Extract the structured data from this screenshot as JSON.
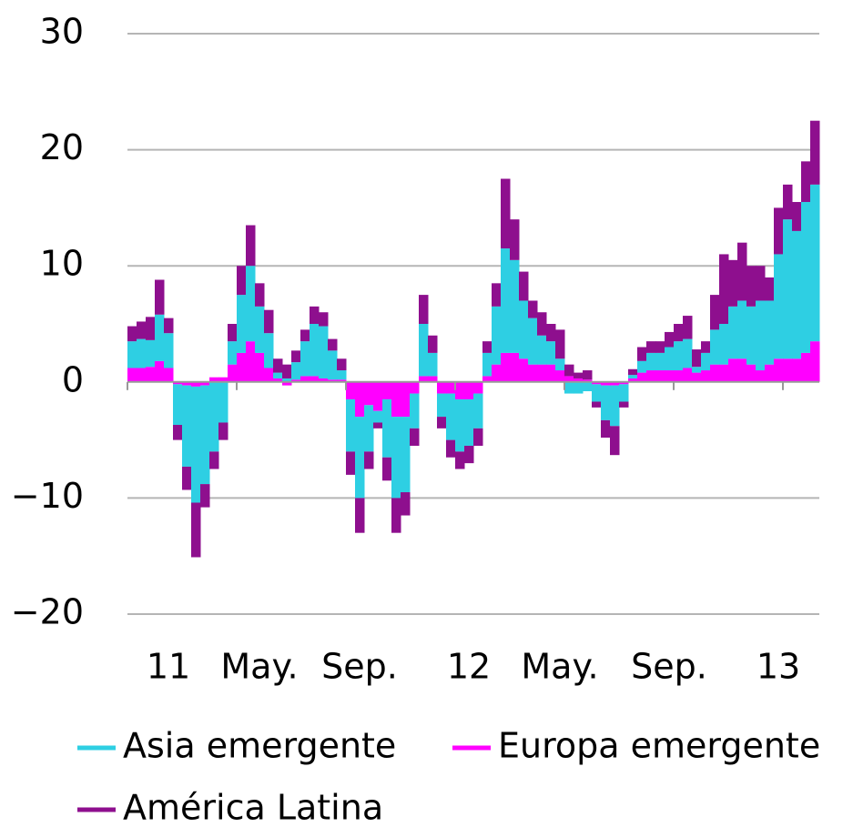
{
  "chart_data": {
    "type": "stacked-bar",
    "categories": [
      null,
      null,
      null,
      null,
      "11",
      null,
      null,
      null,
      null,
      null,
      null,
      null,
      null,
      null,
      "May.",
      null,
      null,
      null,
      null,
      null,
      null,
      null,
      null,
      null,
      null,
      "Sep.",
      null,
      null,
      null,
      null,
      null,
      null,
      null,
      null,
      null,
      null,
      null,
      "12",
      null,
      null,
      null,
      null,
      null,
      null,
      null,
      null,
      null,
      "May.",
      null,
      null,
      null,
      null,
      null,
      null,
      null,
      null,
      null,
      null,
      null,
      "Sep.",
      null,
      null,
      null,
      null,
      null,
      null,
      null,
      null,
      null,
      null,
      null,
      "13",
      null,
      null,
      null,
      null
    ],
    "series": [
      {
        "name": "Europa emergente",
        "color": "#ff00ff",
        "values": [
          1.2,
          1.2,
          1.3,
          1.8,
          1.2,
          -0.2,
          -0.3,
          -0.4,
          -0.3,
          0.4,
          0.4,
          1.5,
          2.5,
          3.5,
          2.5,
          1.2,
          0.3,
          -0.3,
          0.2,
          0.5,
          0.5,
          0.3,
          0.2,
          0.2,
          -1.5,
          -3,
          -2,
          -2.5,
          -1.5,
          -3,
          -3,
          -1,
          0.5,
          0.5,
          -1,
          -1,
          -1.5,
          -1.5,
          -1,
          0.5,
          1.5,
          2.5,
          2.5,
          2,
          1.5,
          1.5,
          1.5,
          1,
          0.5,
          0.3,
          0.2,
          -0.2,
          -0.3,
          -0.3,
          -0.2,
          0.3,
          0.8,
          1,
          1,
          1,
          1,
          1.2,
          0.8,
          1,
          1.5,
          1.5,
          2,
          2,
          1.5,
          1,
          1.5,
          2,
          2,
          2,
          2.5,
          3.5
        ]
      },
      {
        "name": "Asia emergente",
        "color": "#2ecfe3",
        "values": [
          2.3,
          2.5,
          2.3,
          4,
          3,
          -3.5,
          -7,
          -10,
          -8.5,
          -6,
          -3.5,
          2,
          5,
          6.5,
          4,
          3,
          0.5,
          0.3,
          1.5,
          3,
          4.5,
          4.5,
          2.5,
          0.8,
          -4.5,
          -7,
          -4,
          -1,
          -5,
          -7,
          -6.5,
          -3,
          4.5,
          2,
          -2,
          -4,
          -4.5,
          -4,
          -3,
          2,
          5,
          9,
          8,
          5,
          4,
          2.5,
          2,
          1,
          -1,
          -1,
          -0.8,
          -1.5,
          -3,
          -3.5,
          -1.5,
          0.3,
          1,
          1.5,
          1.5,
          2,
          2.5,
          2.5,
          0.5,
          1.5,
          3,
          3.5,
          4.5,
          5,
          5,
          6,
          5.5,
          9,
          12,
          11,
          13,
          13.5
        ]
      },
      {
        "name": "América Latina",
        "color": "#8e0f8e",
        "values": [
          1.3,
          1.5,
          2,
          3,
          1.3,
          -1.3,
          -2,
          -4.7,
          -2,
          -1.5,
          -1.5,
          1.5,
          2.5,
          3.5,
          2,
          2,
          1.2,
          1.2,
          1,
          1,
          1.5,
          1.2,
          1,
          1,
          -2,
          -3,
          -1.5,
          -0.5,
          -2,
          -3,
          -2,
          -1.5,
          2.5,
          1.5,
          -1,
          -1.5,
          -1.5,
          -1.5,
          -1.5,
          1,
          2,
          6,
          3.5,
          2.5,
          1.5,
          2,
          1.5,
          2.5,
          1,
          0.5,
          0.8,
          -0.5,
          -1.5,
          -2.5,
          -0.5,
          0.5,
          1.2,
          1,
          1,
          1.3,
          1.5,
          2,
          1.5,
          1,
          3,
          6,
          4,
          5,
          3.5,
          3,
          2,
          4,
          3,
          2.5,
          3.5,
          5.5
        ]
      }
    ],
    "ylim": [
      -20,
      30
    ],
    "yticks": [
      {
        "value": -20,
        "label": "−20"
      },
      {
        "value": -10,
        "label": "−10"
      },
      0,
      10,
      20,
      30
    ],
    "grid": true
  }
}
